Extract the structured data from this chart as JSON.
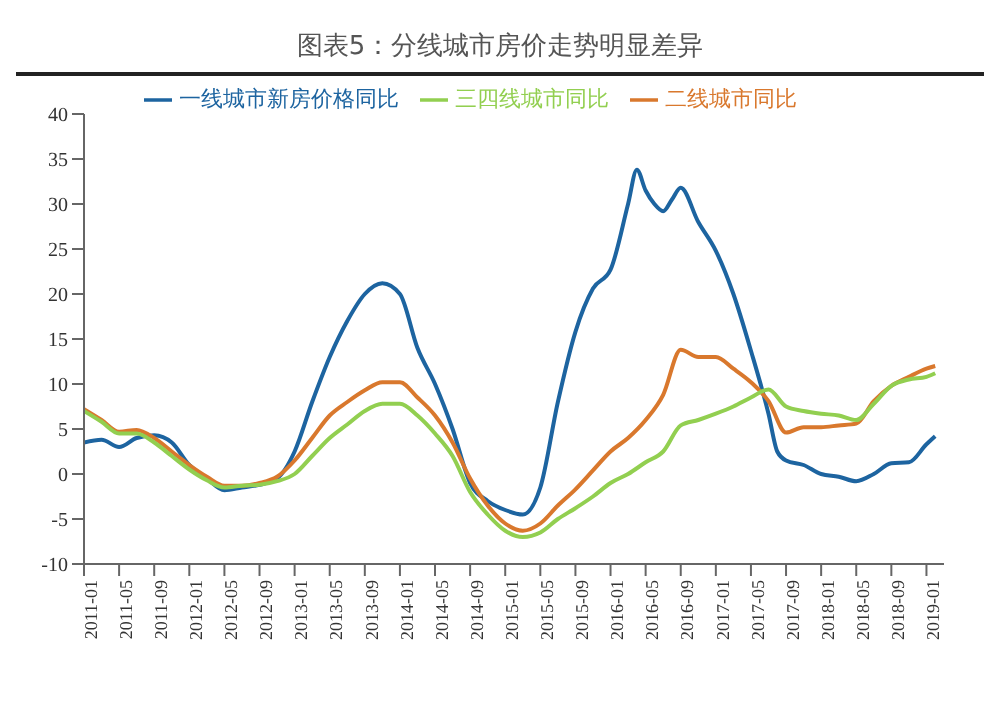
{
  "chart_data": {
    "type": "line",
    "title": "图表5：分线城市房价走势明显差异",
    "xlim": [
      "2011-01",
      "2019-03"
    ],
    "xticks": [
      "2011-01",
      "2011-05",
      "2011-09",
      "2012-01",
      "2012-05",
      "2012-09",
      "2013-01",
      "2013-05",
      "2013-09",
      "2014-01",
      "2014-05",
      "2014-09",
      "2015-01",
      "2015-05",
      "2015-09",
      "2016-01",
      "2016-05",
      "2016-09",
      "2017-01",
      "2017-05",
      "2017-09",
      "2018-01",
      "2018-05",
      "2018-09",
      "2019-01"
    ],
    "ylim": [
      -10,
      40
    ],
    "yticks": [
      -10,
      -5,
      0,
      5,
      10,
      15,
      20,
      25,
      30,
      35,
      40
    ],
    "grid": false,
    "legend": "top",
    "marker": "none",
    "line_style": "solid",
    "series": [
      {
        "name": "一线城市新房价格同比",
        "color": "#1d64a0",
        "x": [
          "2011-01",
          "2011-03",
          "2011-05",
          "2011-07",
          "2011-09",
          "2011-11",
          "2012-01",
          "2012-03",
          "2012-05",
          "2012-07",
          "2012-09",
          "2012-11",
          "2013-01",
          "2013-03",
          "2013-05",
          "2013-07",
          "2013-09",
          "2013-11",
          "2014-01",
          "2014-03",
          "2014-05",
          "2014-07",
          "2014-09",
          "2014-11",
          "2015-01",
          "2015-03",
          "2015-05",
          "2015-07",
          "2015-09",
          "2015-11",
          "2016-01",
          "2016-03",
          "2016-04",
          "2016-05",
          "2016-06",
          "2016-07",
          "2016-08",
          "2016-09",
          "2016-11",
          "2017-01",
          "2017-03",
          "2017-05",
          "2017-07",
          "2017-08",
          "2017-09",
          "2017-11",
          "2018-01",
          "2018-03",
          "2018-05",
          "2018-07",
          "2018-09",
          "2018-11",
          "2019-01",
          "2019-02"
        ],
        "values": [
          3.5,
          3.8,
          3.0,
          4.0,
          4.3,
          3.5,
          1.0,
          -0.5,
          -1.8,
          -1.5,
          -1.2,
          -0.5,
          2.5,
          8,
          13,
          17,
          20,
          21.2,
          20,
          14,
          10,
          5,
          -1,
          -3,
          -4,
          -4.5,
          -1.5,
          8,
          15.8,
          20.6,
          22.7,
          30,
          33.8,
          31.5,
          30,
          29.2,
          30.5,
          31.8,
          28,
          24.8,
          20,
          13.7,
          6.7,
          2.5,
          1.5,
          1.0,
          0,
          -0.3,
          -0.8,
          0,
          1.2,
          1.3,
          3.3,
          4.2
        ]
      },
      {
        "name": "二线城市同比",
        "color": "#d9782d",
        "x": [
          "2011-01",
          "2011-03",
          "2011-05",
          "2011-07",
          "2011-09",
          "2011-11",
          "2012-01",
          "2012-03",
          "2012-05",
          "2012-07",
          "2012-09",
          "2012-11",
          "2013-01",
          "2013-03",
          "2013-05",
          "2013-07",
          "2013-09",
          "2013-11",
          "2014-01",
          "2014-03",
          "2014-05",
          "2014-07",
          "2014-09",
          "2014-11",
          "2015-01",
          "2015-03",
          "2015-05",
          "2015-07",
          "2015-09",
          "2015-11",
          "2016-01",
          "2016-03",
          "2016-05",
          "2016-07",
          "2016-09",
          "2016-11",
          "2017-01",
          "2017-03",
          "2017-05",
          "2017-07",
          "2017-09",
          "2017-11",
          "2018-01",
          "2018-03",
          "2018-05",
          "2018-07",
          "2018-09",
          "2018-11",
          "2019-01",
          "2019-02"
        ],
        "values": [
          7.2,
          6,
          4.7,
          4.9,
          4,
          2.5,
          1,
          -0.3,
          -1.3,
          -1.3,
          -1,
          -0.3,
          1.5,
          4,
          6.5,
          8,
          9.3,
          10.2,
          10.2,
          8.5,
          6.5,
          3.5,
          -0.5,
          -3.5,
          -5.5,
          -6.3,
          -5.5,
          -3.5,
          -1.7,
          0.4,
          2.5,
          4,
          6,
          8.8,
          13.8,
          13,
          13,
          11.7,
          10.2,
          8.1,
          4.6,
          5.2,
          5.2,
          5.4,
          5.6,
          8.1,
          9.8,
          10.8,
          11.7,
          12
        ]
      },
      {
        "name": "三四线城市同比",
        "color": "#92cf50",
        "x": [
          "2011-01",
          "2011-03",
          "2011-05",
          "2011-07",
          "2011-09",
          "2011-11",
          "2012-01",
          "2012-03",
          "2012-05",
          "2012-07",
          "2012-09",
          "2012-11",
          "2013-01",
          "2013-03",
          "2013-05",
          "2013-07",
          "2013-09",
          "2013-11",
          "2014-01",
          "2014-03",
          "2014-05",
          "2014-07",
          "2014-09",
          "2014-11",
          "2015-01",
          "2015-03",
          "2015-05",
          "2015-07",
          "2015-09",
          "2015-11",
          "2016-01",
          "2016-03",
          "2016-05",
          "2016-07",
          "2016-09",
          "2016-11",
          "2017-01",
          "2017-03",
          "2017-05",
          "2017-07",
          "2017-09",
          "2017-11",
          "2018-01",
          "2018-03",
          "2018-05",
          "2018-07",
          "2018-09",
          "2018-11",
          "2019-01",
          "2019-02"
        ],
        "values": [
          7,
          5.8,
          4.5,
          4.5,
          3.5,
          2,
          0.5,
          -0.7,
          -1.5,
          -1.3,
          -1.2,
          -0.8,
          0,
          2,
          4,
          5.5,
          7,
          7.8,
          7.8,
          6.5,
          4.5,
          2,
          -2,
          -4.5,
          -6.3,
          -7,
          -6.5,
          -5,
          -3.8,
          -2.5,
          -1,
          0,
          1.3,
          2.5,
          5.4,
          6,
          6.7,
          7.5,
          8.5,
          9.4,
          7.5,
          7,
          6.7,
          6.5,
          6,
          7.8,
          9.8,
          10.5,
          10.8,
          11.2
        ]
      }
    ]
  }
}
